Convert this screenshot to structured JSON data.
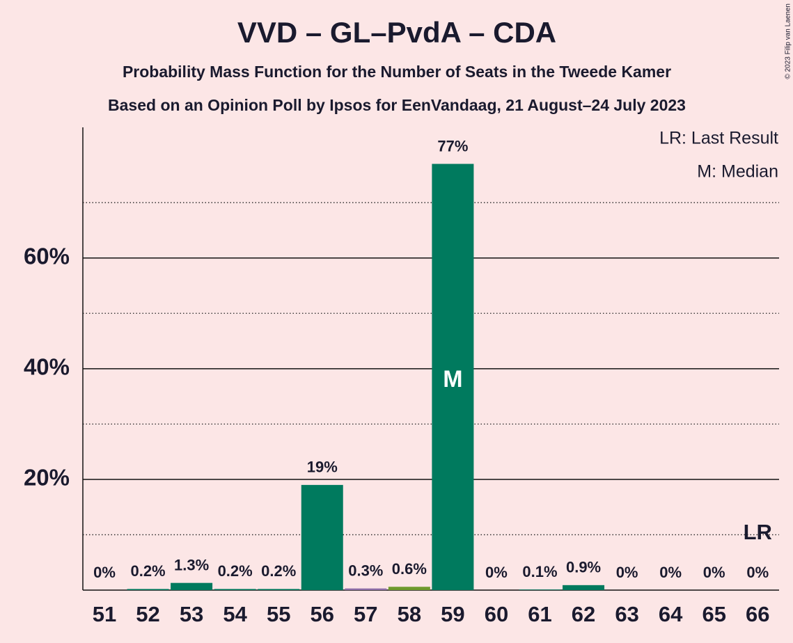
{
  "chart_data": {
    "type": "bar",
    "title": "VVD – GL–PvdA – CDA",
    "subtitle": "Probability Mass Function for the Number of Seats in the Tweede Kamer",
    "subtitle2": "Based on an Opinion Poll by Ipsos for EenVandaag, 21 August–24 July 2023",
    "copyright": "© 2023 Filip van Laenen",
    "legend": [
      "LR: Last Result",
      "M: Median"
    ],
    "categories": [
      "51",
      "52",
      "53",
      "54",
      "55",
      "56",
      "57",
      "58",
      "59",
      "60",
      "61",
      "62",
      "63",
      "64",
      "65",
      "66"
    ],
    "values": [
      0,
      0.2,
      1.3,
      0.2,
      0.2,
      19,
      0.3,
      0.6,
      77,
      0,
      0.1,
      0.9,
      0,
      0,
      0,
      0
    ],
    "value_labels": [
      "0%",
      "0.2%",
      "1.3%",
      "0.2%",
      "0.2%",
      "19%",
      "0.3%",
      "0.6%",
      "77%",
      "0%",
      "0.1%",
      "0.9%",
      "0%",
      "0%",
      "0%",
      "0%"
    ],
    "colors": [
      "#007a5e",
      "#007a5e",
      "#007a5e",
      "#007a5e",
      "#007a5e",
      "#007a5e",
      "#8e6ea8",
      "#6f9a2e",
      "#007a5e",
      "#007a5e",
      "#007a5e",
      "#007a5e",
      "#007a5e",
      "#007a5e",
      "#007a5e",
      "#007a5e"
    ],
    "median": 59,
    "median_marker": "M",
    "last_result": 66,
    "last_result_marker": "LR",
    "ylim": [
      0,
      83.6
    ],
    "yticks": [
      {
        "value": 20,
        "label": "20%"
      },
      {
        "value": 40,
        "label": "40%"
      },
      {
        "value": 60,
        "label": "60%"
      }
    ],
    "minor_yticks": [
      10,
      30,
      50,
      70
    ],
    "grid": true
  }
}
